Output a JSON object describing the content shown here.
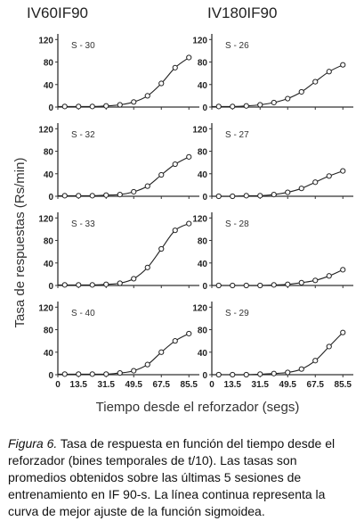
{
  "chart_data": {
    "type": "line",
    "column_titles": [
      "IV60IF90",
      "IV180IF90"
    ],
    "ylabel": "Tasa de respuestas  (Rs/min)",
    "xlabel": "Tiempo desde el reforzador  (segs)",
    "yticks": [
      "0",
      "40",
      "80",
      "120"
    ],
    "ylim": [
      0,
      130
    ],
    "xtick_labels": [
      "0",
      "13.5",
      "31.5",
      "49.5",
      "67.5",
      "85.5"
    ],
    "x": [
      4.5,
      13.5,
      22.5,
      31.5,
      40.5,
      49.5,
      58.5,
      67.5,
      76.5,
      85.5
    ],
    "panels": [
      {
        "label": "S - 30",
        "column": 0,
        "row": 0,
        "values": [
          1,
          1,
          1,
          2,
          4,
          9,
          20,
          42,
          70,
          88
        ]
      },
      {
        "label": "S - 26",
        "column": 1,
        "row": 0,
        "values": [
          1,
          1,
          2,
          4,
          8,
          15,
          27,
          45,
          63,
          75
        ]
      },
      {
        "label": "S - 32",
        "column": 0,
        "row": 1,
        "values": [
          1,
          1,
          1,
          2,
          3,
          8,
          18,
          38,
          57,
          70
        ]
      },
      {
        "label": "S - 27",
        "column": 1,
        "row": 1,
        "values": [
          0,
          0,
          1,
          1,
          3,
          7,
          14,
          25,
          36,
          45
        ]
      },
      {
        "label": "S - 33",
        "column": 0,
        "row": 2,
        "values": [
          1,
          1,
          1,
          2,
          4,
          12,
          32,
          65,
          98,
          110
        ]
      },
      {
        "label": "S - 28",
        "column": 1,
        "row": 2,
        "values": [
          0,
          0,
          0,
          0,
          1,
          2,
          5,
          9,
          17,
          28
        ]
      },
      {
        "label": "S - 40",
        "column": 0,
        "row": 3,
        "values": [
          1,
          1,
          1,
          1,
          3,
          7,
          18,
          40,
          60,
          73
        ]
      },
      {
        "label": "S - 29",
        "column": 1,
        "row": 3,
        "values": [
          0,
          0,
          0,
          1,
          2,
          4,
          10,
          25,
          50,
          75
        ]
      }
    ]
  },
  "caption": {
    "label": "Figura 6.",
    "text": " Tasa de respuesta en función del tiempo desde el reforzador (bines temporales de t/10). Las tasas son promedios obtenidos sobre las últimas 5 sesiones de entrenamiento en IF 90-s. La línea continua representa la curva de mejor ajuste de la función sigmoidea."
  }
}
